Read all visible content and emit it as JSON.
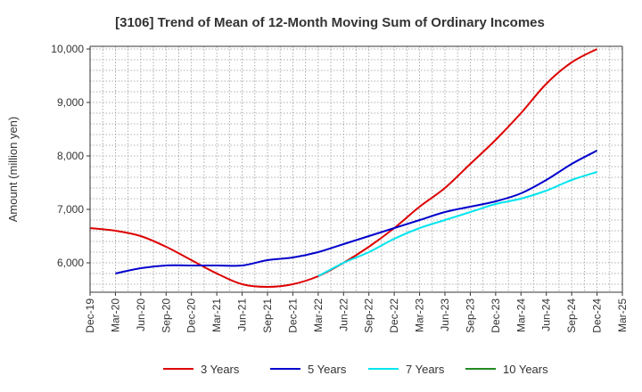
{
  "chart_data": {
    "type": "line",
    "title": "[3106]  Trend of Mean of 12-Month Moving Sum of Ordinary Incomes",
    "xlabel": "",
    "ylabel": "Amount (million yen)",
    "ylim": [
      5450,
      10050
    ],
    "yticks": [
      6000,
      7000,
      8000,
      9000,
      10000
    ],
    "ytick_labels": [
      "6,000",
      "7,000",
      "8,000",
      "9,000",
      "10,000"
    ],
    "categories": [
      "Dec-19",
      "Mar-20",
      "Jun-20",
      "Sep-20",
      "Dec-20",
      "Mar-21",
      "Jun-21",
      "Sep-21",
      "Dec-21",
      "Mar-22",
      "Jun-22",
      "Sep-22",
      "Dec-22",
      "Mar-23",
      "Jun-23",
      "Sep-23",
      "Dec-23",
      "Mar-24",
      "Jun-24",
      "Sep-24",
      "Dec-24",
      "Mar-25"
    ],
    "grid": true,
    "legend_position": "bottom",
    "series": [
      {
        "name": "3 Years",
        "color": "#dd0000",
        "values": [
          6650,
          6600,
          6500,
          6300,
          6050,
          5800,
          5600,
          5550,
          5600,
          5750,
          6000,
          6300,
          6650,
          7050,
          7400,
          7850,
          8300,
          8800,
          9350,
          9750,
          10000,
          null
        ]
      },
      {
        "name": "5 Years",
        "color": "#0000cc",
        "values": [
          null,
          5800,
          5900,
          5950,
          5950,
          5950,
          5950,
          6050,
          6100,
          6200,
          6350,
          6500,
          6650,
          6800,
          6950,
          7050,
          7150,
          7300,
          7550,
          7850,
          8100,
          null
        ]
      },
      {
        "name": "7 Years",
        "color": "#00e5ee",
        "values": [
          null,
          null,
          null,
          null,
          null,
          null,
          null,
          null,
          null,
          5750,
          6000,
          6200,
          6450,
          6650,
          6800,
          6950,
          7100,
          7200,
          7350,
          7550,
          7700,
          null
        ]
      },
      {
        "name": "10 Years",
        "color": "#228B22",
        "values": [
          null,
          null,
          null,
          null,
          null,
          null,
          null,
          null,
          null,
          null,
          null,
          null,
          null,
          null,
          null,
          null,
          null,
          null,
          null,
          null,
          null,
          null
        ]
      }
    ]
  }
}
